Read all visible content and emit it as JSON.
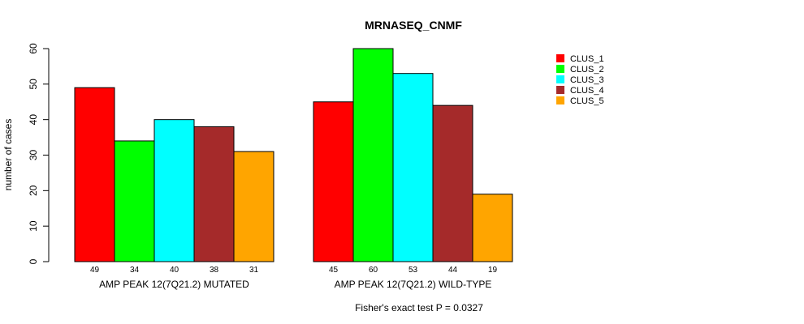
{
  "chart_data": {
    "type": "bar",
    "title": "MRNASEQ_CNMF",
    "ylabel": "number of cases",
    "ylim": [
      0,
      60
    ],
    "yticks": [
      0,
      10,
      20,
      30,
      40,
      50,
      60
    ],
    "groups": [
      {
        "label": "AMP PEAK 12(7Q21.2) MUTATED",
        "values": [
          49,
          34,
          40,
          38,
          31
        ]
      },
      {
        "label": "AMP PEAK 12(7Q21.2) WILD-TYPE",
        "values": [
          45,
          60,
          53,
          44,
          19
        ]
      }
    ],
    "series": [
      {
        "name": "CLUS_1",
        "color": "#ff0000"
      },
      {
        "name": "CLUS_2",
        "color": "#00ff00"
      },
      {
        "name": "CLUS_3",
        "color": "#00ffff"
      },
      {
        "name": "CLUS_4",
        "color": "#a52a2a"
      },
      {
        "name": "CLUS_5",
        "color": "#ffa500"
      }
    ],
    "legend_position": "top-right",
    "footnote": "Fisher's exact test P = 0.0327"
  }
}
